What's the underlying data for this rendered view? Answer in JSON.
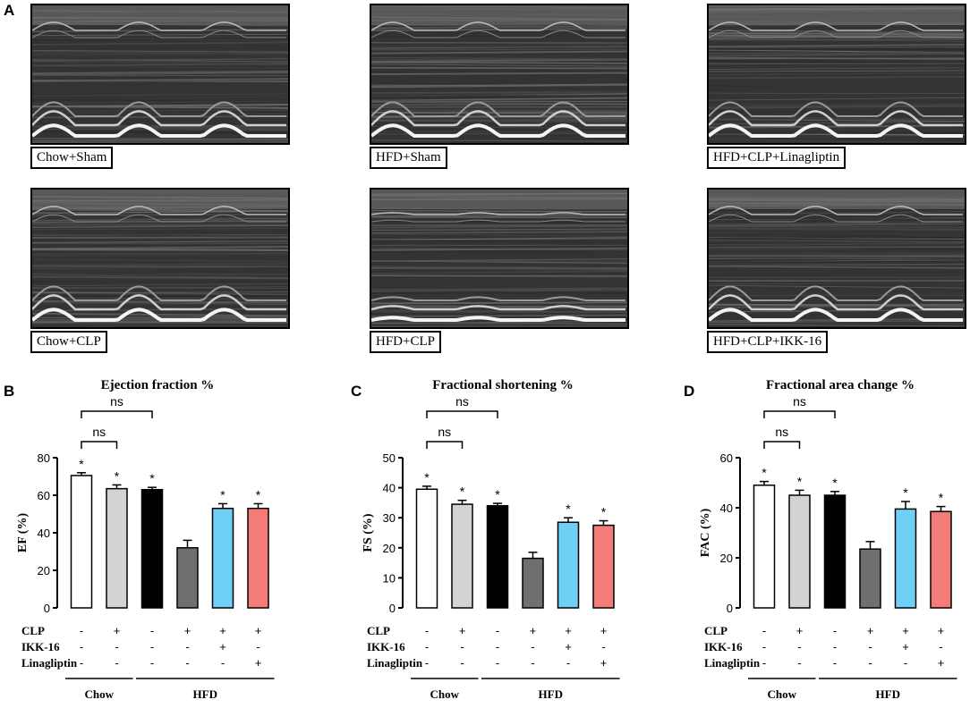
{
  "panel_labels": {
    "a": "A",
    "b": "B",
    "c": "C",
    "d": "D"
  },
  "echo_panels": [
    {
      "label": "Chow+Sham"
    },
    {
      "label": "HFD+Sham"
    },
    {
      "label": "HFD+CLP+Linagliptin"
    },
    {
      "label": "Chow+CLP"
    },
    {
      "label": "HFD+CLP"
    },
    {
      "label": "HFD+CLP+IKK-16"
    }
  ],
  "treatment_table": {
    "rows": [
      {
        "name": "CLP",
        "values": [
          "-",
          "+",
          "-",
          "+",
          "+",
          "+"
        ]
      },
      {
        "name": "IKK-16",
        "values": [
          "-",
          "-",
          "-",
          "-",
          "+",
          "-"
        ]
      },
      {
        "name": "Linagliptin",
        "values": [
          "-",
          "-",
          "-",
          "-",
          "-",
          "+"
        ]
      }
    ],
    "groups": [
      "Chow",
      "HFD"
    ]
  },
  "colors": {
    "bars": [
      "#ffffff",
      "#d3d3d3",
      "#000000",
      "#6f6f6f",
      "#6fd0f5",
      "#f37b78"
    ]
  },
  "chart_data": [
    {
      "type": "bar",
      "title": "Ejection fraction %",
      "ylabel": "EF (%)",
      "ylim": [
        0,
        80
      ],
      "yticks": [
        0,
        20,
        40,
        60,
        80
      ],
      "values": [
        70.5,
        63.5,
        63,
        32,
        53,
        53
      ],
      "errors": [
        1.5,
        2,
        1.2,
        4,
        2.5,
        2.5
      ],
      "significance": [
        "*",
        "*",
        "*",
        "",
        "*",
        "*"
      ],
      "brackets": [
        {
          "from": 0,
          "to": 1,
          "label": "ns"
        },
        {
          "from": 0,
          "to": 2,
          "label": "ns"
        }
      ]
    },
    {
      "type": "bar",
      "title": "Fractional shortening %",
      "ylabel": "FS (%)",
      "ylim": [
        0,
        50
      ],
      "yticks": [
        0,
        10,
        20,
        30,
        40,
        50
      ],
      "values": [
        39.5,
        34.5,
        34,
        16.5,
        28.5,
        27.5
      ],
      "errors": [
        1,
        1.3,
        0.8,
        2,
        1.5,
        1.5
      ],
      "significance": [
        "*",
        "*",
        "*",
        "",
        "*",
        "*"
      ],
      "brackets": [
        {
          "from": 0,
          "to": 1,
          "label": "ns"
        },
        {
          "from": 0,
          "to": 2,
          "label": "ns"
        }
      ]
    },
    {
      "type": "bar",
      "title": "Fractional area change %",
      "ylabel": "FAC (%)",
      "ylim": [
        0,
        60
      ],
      "yticks": [
        0,
        20,
        40,
        60
      ],
      "values": [
        49,
        45,
        45,
        23.5,
        39.5,
        38.5
      ],
      "errors": [
        1.5,
        2,
        1.5,
        3,
        3,
        2
      ],
      "significance": [
        "*",
        "*",
        "*",
        "",
        "*",
        "*"
      ],
      "brackets": [
        {
          "from": 0,
          "to": 1,
          "label": "ns"
        },
        {
          "from": 0,
          "to": 2,
          "label": "ns"
        }
      ]
    }
  ]
}
